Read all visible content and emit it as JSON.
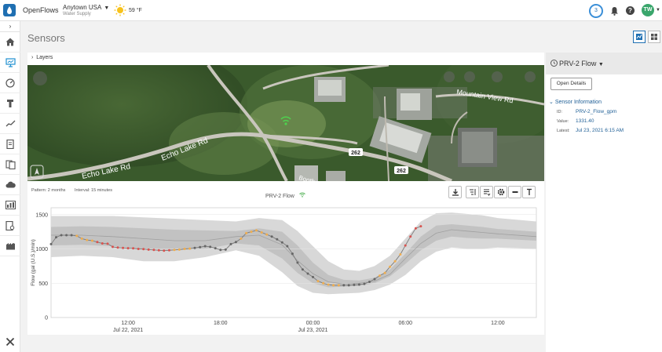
{
  "header": {
    "app_name": "OpenFlows",
    "location": "Anytown USA",
    "location_sub": "Water Supply",
    "temperature": "59 °F",
    "notification_count": "3",
    "help_label": "?",
    "user_initials": "TW"
  },
  "page": {
    "title": "Sensors",
    "layers_label": "Layers"
  },
  "map": {
    "road_labels": [
      "Echo Lake Rd",
      "Echo Lake Rd",
      "Mountain View Rd",
      "Booth"
    ],
    "route_shields": [
      "262",
      "262"
    ]
  },
  "chart_meta": {
    "pattern": "Pattern: 2 months",
    "interval": "Interval: 15 minutes"
  },
  "chart_data": {
    "type": "line",
    "title": "PRV-2 Flow",
    "ylabel": "Flow (gal (U.S.)/min)",
    "ylim": [
      0,
      1600
    ],
    "y_ticks": [
      0,
      500,
      1000,
      1500
    ],
    "x_ticks": [
      "12:00",
      "18:00",
      "00:00",
      "06:00",
      "12:00"
    ],
    "x_sublabels": [
      "Jul 22, 2021",
      "",
      "Jul 23, 2021",
      "",
      ""
    ],
    "x_tick_hours": [
      12,
      18,
      24,
      30,
      36
    ],
    "xlim_hours": [
      7,
      38.5
    ],
    "band_outer": {
      "x": [
        7,
        9,
        11,
        13,
        15,
        17,
        19,
        20.5,
        22,
        23,
        24,
        25,
        26,
        27,
        28,
        29,
        30,
        31,
        32,
        33,
        34,
        35,
        36,
        38.5
      ],
      "lower": [
        880,
        900,
        880,
        820,
        820,
        880,
        980,
        900,
        660,
        460,
        360,
        340,
        350,
        360,
        400,
        480,
        620,
        820,
        960,
        1020,
        1000,
        1000,
        1020,
        1000
      ],
      "upper": [
        1480,
        1480,
        1480,
        1460,
        1440,
        1420,
        1400,
        1450,
        1420,
        1260,
        1040,
        820,
        700,
        680,
        750,
        900,
        1150,
        1400,
        1520,
        1530,
        1510,
        1490,
        1450,
        1400
      ]
    },
    "band_inner": {
      "x": [
        7,
        9,
        11,
        13,
        15,
        17,
        19,
        20.5,
        22,
        23,
        24,
        25,
        26,
        27,
        28,
        29,
        30,
        31,
        32,
        33,
        34,
        35,
        36,
        38.5
      ],
      "lower": [
        1050,
        1060,
        1040,
        1000,
        980,
        1000,
        1080,
        1050,
        860,
        650,
        500,
        440,
        450,
        460,
        500,
        600,
        780,
        980,
        1120,
        1180,
        1160,
        1150,
        1150,
        1120
      ],
      "upper": [
        1320,
        1330,
        1320,
        1300,
        1280,
        1270,
        1260,
        1300,
        1250,
        1050,
        800,
        620,
        550,
        540,
        580,
        700,
        930,
        1180,
        1340,
        1360,
        1340,
        1320,
        1290,
        1250
      ]
    },
    "median": {
      "x": [
        7,
        9,
        11,
        13,
        15,
        17,
        19,
        20.5,
        22,
        23,
        24,
        25,
        26,
        27,
        28,
        29,
        30,
        31,
        32,
        33,
        34,
        35,
        36,
        38.5
      ],
      "values": [
        1200,
        1200,
        1180,
        1150,
        1120,
        1120,
        1180,
        1200,
        1060,
        830,
        640,
        520,
        490,
        500,
        530,
        630,
        860,
        1080,
        1230,
        1280,
        1260,
        1240,
        1220,
        1180
      ]
    },
    "series": [
      {
        "x": [
          7.0,
          7.33,
          7.67,
          8.0,
          8.33,
          8.67,
          9.0,
          9.33,
          9.67,
          10.0,
          10.33,
          10.67,
          11.0,
          11.33,
          11.67,
          12.0,
          12.33,
          12.67,
          13.0,
          13.33,
          13.67,
          14.0,
          14.33,
          14.67,
          15.0,
          15.33,
          15.67,
          16.0,
          16.33,
          16.67,
          17.0,
          17.33,
          17.67,
          18.0,
          18.33,
          18.67,
          19.0,
          19.33,
          19.67,
          20.0,
          20.33,
          20.67,
          21.0,
          21.33,
          21.67,
          22.0,
          22.33,
          22.67,
          23.0,
          23.33,
          23.67,
          24.0,
          24.33,
          24.67,
          25.0,
          25.33,
          25.67,
          26.0,
          26.33,
          26.67,
          27.0,
          27.33,
          27.67,
          28.0,
          28.33,
          28.67,
          29.0,
          29.33,
          29.67,
          30.0,
          30.33,
          30.67,
          31.0
        ],
        "values": [
          1070,
          1170,
          1200,
          1200,
          1200,
          1190,
          1150,
          1130,
          1120,
          1100,
          1080,
          1075,
          1030,
          1020,
          1015,
          1010,
          1008,
          1000,
          998,
          990,
          985,
          980,
          975,
          980,
          985,
          990,
          1000,
          1005,
          1015,
          1025,
          1040,
          1030,
          1010,
          985,
          990,
          1070,
          1100,
          1150,
          1230,
          1250,
          1270,
          1240,
          1210,
          1180,
          1140,
          1095,
          1040,
          930,
          800,
          700,
          640,
          590,
          530,
          500,
          480,
          470,
          470,
          470,
          470,
          475,
          480,
          490,
          520,
          560,
          610,
          650,
          740,
          820,
          920,
          1050,
          1180,
          1300,
          1330
        ],
        "point_colors": [
          "#666666",
          "#666666",
          "#666666",
          "#666666",
          "#666666",
          "#f0ad4e",
          "#f0ad4e",
          "#f0ad4e",
          "#f0ad4e",
          "#d9534f",
          "#d9534f",
          "#d9534f",
          "#d9534f",
          "#d9534f",
          "#d9534f",
          "#d9534f",
          "#d9534f",
          "#d9534f",
          "#d9534f",
          "#d9534f",
          "#d9534f",
          "#d9534f",
          "#d9534f",
          "#d9534f",
          "#f0ad4e",
          "#f0ad4e",
          "#f0ad4e",
          "#f0ad4e",
          "#666666",
          "#666666",
          "#666666",
          "#666666",
          "#666666",
          "#666666",
          "#666666",
          "#666666",
          "#666666",
          "#f0ad4e",
          "#f0ad4e",
          "#f0ad4e",
          "#f0ad4e",
          "#f0ad4e",
          "#f0ad4e",
          "#666666",
          "#666666",
          "#666666",
          "#666666",
          "#666666",
          "#666666",
          "#666666",
          "#666666",
          "#666666",
          "#f0ad4e",
          "#f0ad4e",
          "#f0ad4e",
          "#f0ad4e",
          "#f0ad4e",
          "#666666",
          "#666666",
          "#666666",
          "#666666",
          "#666666",
          "#666666",
          "#666666",
          "#f0ad4e",
          "#f0ad4e",
          "#f0ad4e",
          "#f0ad4e",
          "#f0ad4e",
          "#d9534f",
          "#d9534f",
          "#d9534f",
          "#d9534f"
        ]
      }
    ],
    "colors": {
      "band_outer": "#d8d8d8",
      "band_inner": "#c2c2c2",
      "median": "#a0a0a0",
      "line": "#7a7a7a",
      "normal": "#666666",
      "warning": "#f0ad4e",
      "alarm": "#d9534f"
    }
  },
  "right_panel": {
    "sensor_name": "PRV-2 Flow",
    "open_details_label": "Open Details",
    "section_title": "Sensor Information",
    "fields": [
      {
        "label": "ID:",
        "value": "PRV-2_Flow_gpm"
      },
      {
        "label": "Value:",
        "value": "1331.40"
      },
      {
        "label": "Latest:",
        "value": "Jul 23, 2021 6:15 AM"
      }
    ]
  },
  "icons": {
    "logo": "water-drop-icon",
    "weather": "sun-icon",
    "notifications": "bell-icon",
    "help": "help-icon",
    "sidebar": [
      "home-icon",
      "sensors-icon",
      "gauge-icon",
      "hydrant-icon",
      "trend-icon",
      "report-icon",
      "documents-icon",
      "cloud-icon",
      "dashboard-icon",
      "reports-search-icon",
      "facility-icon",
      "tools-icon"
    ],
    "chart_tools": [
      "download-icon",
      "filter-icon",
      "list-filter-icon",
      "gear-icon",
      "minus-icon",
      "text-icon"
    ]
  }
}
